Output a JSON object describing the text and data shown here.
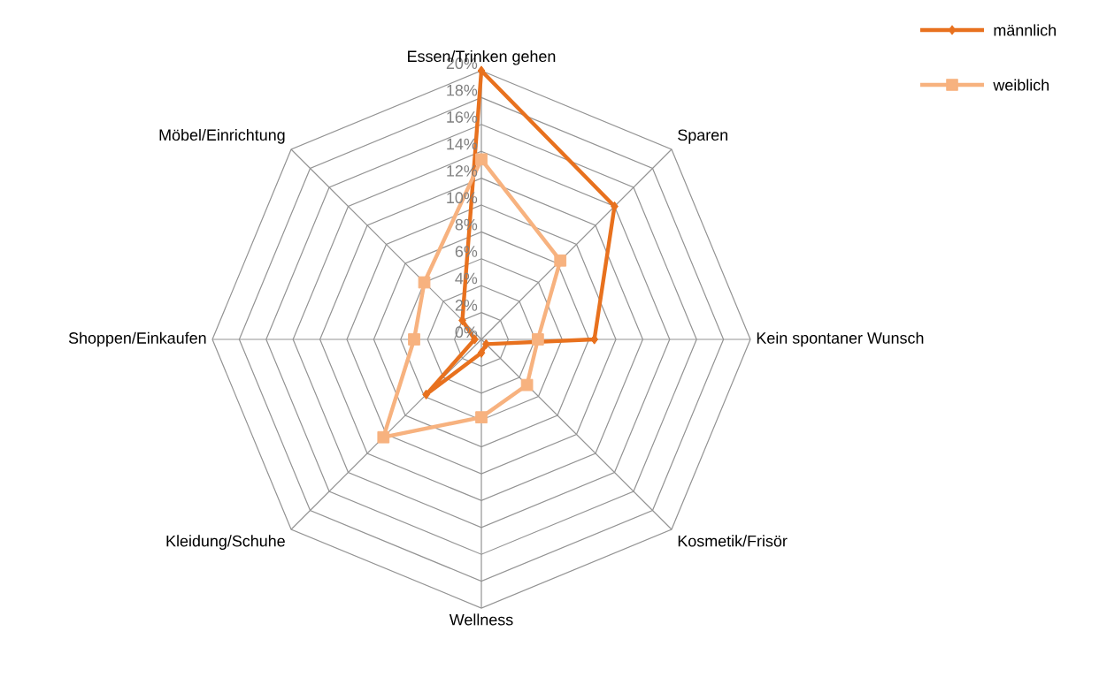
{
  "chart_data": {
    "type": "radar",
    "categories": [
      "Essen/Trinken gehen",
      "Sparen",
      "Kein spontaner Wunsch",
      "Kosmetik/Frisör",
      "Wellness",
      "Kleidung/Schuhe",
      "Shoppen/Einkaufen",
      "Möbel/Einrichtung"
    ],
    "series": [
      {
        "name": "männlich",
        "color": "#e8711e",
        "marker": "diamond",
        "values": [
          20,
          14,
          8.4,
          0.5,
          1,
          5.8,
          0.5,
          2
        ]
      },
      {
        "name": "weiblich",
        "color": "#f7b27f",
        "marker": "square",
        "values": [
          13.4,
          8.3,
          4.2,
          4.8,
          5.8,
          10.3,
          5,
          6
        ]
      }
    ],
    "ylim": [
      0,
      20
    ],
    "yticks": [
      {
        "value": 0,
        "label": "0%"
      },
      {
        "value": 2,
        "label": "2%"
      },
      {
        "value": 4,
        "label": "4%"
      },
      {
        "value": 6,
        "label": "6%"
      },
      {
        "value": 8,
        "label": "8%"
      },
      {
        "value": 10,
        "label": "10%"
      },
      {
        "value": 12,
        "label": "12%"
      },
      {
        "value": 14,
        "label": "14%"
      },
      {
        "value": 16,
        "label": "16%"
      },
      {
        "value": 18,
        "label": "18%"
      },
      {
        "value": 20,
        "label": "20%"
      }
    ],
    "grid": true,
    "legend": "top right"
  }
}
